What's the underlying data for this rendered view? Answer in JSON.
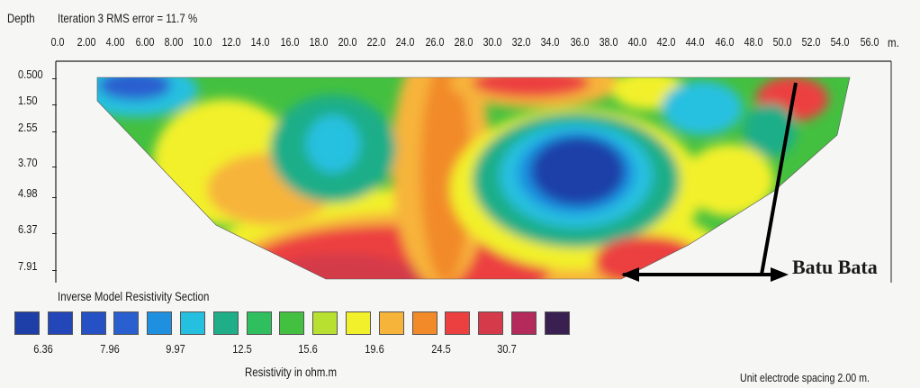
{
  "header": {
    "depth_label": "Depth",
    "title": "Iteration 3 RMS error = 11.7 %",
    "x_unit": "m."
  },
  "x_axis": {
    "ticks": [
      "0.0",
      "2.00",
      "4.00",
      "6.00",
      "8.00",
      "10.0",
      "12.0",
      "14.0",
      "16.0",
      "18.0",
      "20.0",
      "22.0",
      "24.0",
      "26.0",
      "28.0",
      "30.0",
      "32.0",
      "34.0",
      "36.0",
      "38.0",
      "40.0",
      "42.0",
      "44.0",
      "46.0",
      "48.0",
      "50.0",
      "52.0",
      "54.0",
      "56.0"
    ]
  },
  "y_axis": {
    "ticks": [
      "0.500",
      "1.50",
      "2.55",
      "3.70",
      "4.98",
      "6.37",
      "7.91"
    ]
  },
  "annotation": {
    "label": "Batu Bata"
  },
  "section_title": "Inverse Model Resistivity Section",
  "legend": {
    "colors": [
      "#1f3fa8",
      "#2347b8",
      "#2551c4",
      "#2a5fd0",
      "#1f8fe0",
      "#25c0e0",
      "#1fae88",
      "#2fbf5f",
      "#44c040",
      "#b8e030",
      "#f2f02a",
      "#f7b43a",
      "#f28a2a",
      "#ec4040",
      "#d43a4a",
      "#b42a5a",
      "#3a2050"
    ],
    "values": [
      "6.36",
      "7.96",
      "9.97",
      "12.5",
      "15.6",
      "19.6",
      "24.5",
      "30.7"
    ],
    "unit_label": "Resistivity in ohm.m"
  },
  "footer": {
    "electrode_spacing": "Unit electrode spacing 2.00 m."
  }
}
